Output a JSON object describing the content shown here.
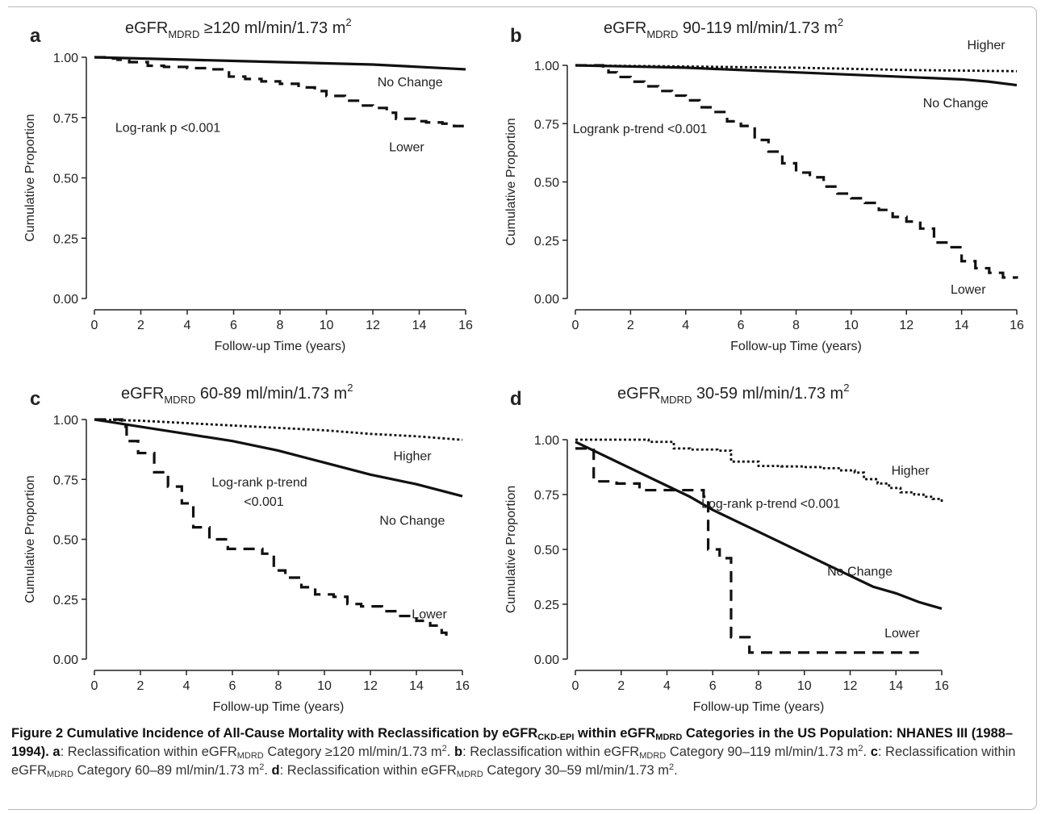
{
  "panels": [
    {
      "letter": "a",
      "title": {
        "prefix": "eGFR",
        "sub": "MDRD",
        "suffix": "  ≥120 ml/min/1.73  m",
        "sup": "2"
      },
      "chart_data": {
        "type": "line",
        "xlabel": "Follow-up Time (years)",
        "ylabel": "Cumulative  Proportion",
        "xlim": [
          0,
          16
        ],
        "ylim": [
          0,
          1
        ],
        "xticks": [
          "0",
          "2",
          "4",
          "6",
          "8",
          "10",
          "12",
          "14",
          "16"
        ],
        "yticks": [
          "0.00",
          "0.25",
          "0.50",
          "0.75",
          "1.00"
        ],
        "series": [
          {
            "name": "No Change",
            "style": "solid",
            "x": [
              0,
              2,
              4,
              6,
              8,
              10,
              12,
              14,
              15,
              16
            ],
            "y": [
              1.0,
              0.995,
              0.99,
              0.985,
              0.98,
              0.975,
              0.97,
              0.96,
              0.955,
              0.95
            ]
          },
          {
            "name": "Lower",
            "style": "dashed",
            "step": true,
            "x": [
              0,
              0.5,
              1,
              1.5,
              2.3,
              3,
              4,
              5,
              5.8,
              6.5,
              7.2,
              8,
              8.8,
              9.5,
              10,
              10.8,
              11.5,
              12,
              12.6,
              13,
              13.8,
              14.3,
              15,
              15.5,
              16
            ],
            "y": [
              1.0,
              0.995,
              0.99,
              0.98,
              0.965,
              0.96,
              0.955,
              0.95,
              0.92,
              0.91,
              0.9,
              0.89,
              0.875,
              0.86,
              0.84,
              0.82,
              0.8,
              0.79,
              0.77,
              0.745,
              0.735,
              0.73,
              0.725,
              0.715,
              0.7
            ]
          }
        ],
        "annotations": [
          {
            "text": "No Change",
            "x": 12.2,
            "y": 0.88
          },
          {
            "text": "Lower",
            "x": 12.7,
            "y": 0.61
          },
          {
            "text": "Log-rank p <0.001",
            "x": 0.9,
            "y": 0.69
          }
        ]
      }
    },
    {
      "letter": "b",
      "title": {
        "prefix": "eGFR",
        "sub": "MDRD",
        "suffix": " 90-119 ml/min/1.73  m",
        "sup": "2"
      },
      "chart_data": {
        "type": "line",
        "xlabel": "Follow-up Time (years)",
        "ylabel": "Cumulative  Proportion",
        "xlim": [
          0,
          16
        ],
        "ylim": [
          0,
          1
        ],
        "xticks": [
          "0",
          "2",
          "4",
          "6",
          "8",
          "10",
          "12",
          "14",
          "16"
        ],
        "yticks": [
          "0.00",
          "0.25",
          "0.50",
          "0.75",
          "1.00"
        ],
        "series": [
          {
            "name": "Higher",
            "style": "dotted",
            "x": [
              0,
              4,
              8,
              12,
              16
            ],
            "y": [
              1.0,
              0.995,
              0.99,
              0.98,
              0.975
            ]
          },
          {
            "name": "No Change",
            "style": "solid",
            "x": [
              0,
              2,
              4,
              6,
              8,
              10,
              12,
              14,
              15,
              16
            ],
            "y": [
              1.0,
              0.995,
              0.99,
              0.98,
              0.97,
              0.96,
              0.95,
              0.94,
              0.93,
              0.915
            ]
          },
          {
            "name": "Lower",
            "style": "dashed",
            "step": true,
            "x": [
              0,
              1,
              1.2,
              1.5,
              2,
              2.5,
              3,
              3.5,
              4,
              4.5,
              5,
              5.5,
              6,
              6.5,
              7,
              7.5,
              8,
              8.5,
              9,
              9.5,
              10,
              10.5,
              11,
              11.5,
              12,
              12.5,
              13,
              13.5,
              14,
              14.5,
              15,
              15.5,
              16
            ],
            "y": [
              1.0,
              0.99,
              0.97,
              0.95,
              0.93,
              0.91,
              0.89,
              0.87,
              0.85,
              0.82,
              0.8,
              0.76,
              0.74,
              0.68,
              0.63,
              0.58,
              0.54,
              0.52,
              0.48,
              0.45,
              0.43,
              0.41,
              0.38,
              0.35,
              0.33,
              0.3,
              0.24,
              0.22,
              0.16,
              0.13,
              0.11,
              0.09,
              0.085
            ]
          }
        ],
        "annotations": [
          {
            "text": "Higher",
            "x": 14.2,
            "y": 1.07
          },
          {
            "text": "No Change",
            "x": 12.6,
            "y": 0.82
          },
          {
            "text": "Logrank p-trend <0.001",
            "x": -0.1,
            "y": 0.71
          },
          {
            "text": "Lower",
            "x": 13.6,
            "y": 0.02
          }
        ]
      }
    },
    {
      "letter": "c",
      "title": {
        "prefix": "eGFR",
        "sub": "MDRD",
        "suffix": " 60-89 ml/min/1.73  m",
        "sup": "2"
      },
      "chart_data": {
        "type": "line",
        "xlabel": "Follow-up Time (years)",
        "ylabel": "Cumulative  Proportion",
        "xlim": [
          0,
          16
        ],
        "ylim": [
          0,
          1
        ],
        "xticks": [
          "0",
          "2",
          "4",
          "6",
          "8",
          "10",
          "12",
          "14",
          "16"
        ],
        "yticks": [
          "0.00",
          "0.25",
          "0.50",
          "0.75",
          "1.00"
        ],
        "series": [
          {
            "name": "Higher",
            "style": "dotted",
            "x": [
              0,
              2,
              4,
              6,
              8,
              10,
              12,
              14,
              16
            ],
            "y": [
              1.0,
              0.995,
              0.985,
              0.975,
              0.965,
              0.955,
              0.94,
              0.93,
              0.915
            ]
          },
          {
            "name": "No Change",
            "style": "solid",
            "x": [
              0,
              2,
              4,
              6,
              8,
              10,
              12,
              14,
              16
            ],
            "y": [
              1.0,
              0.97,
              0.94,
              0.91,
              0.87,
              0.82,
              0.77,
              0.73,
              0.68
            ]
          },
          {
            "name": "Lower",
            "style": "dashed",
            "step": true,
            "x": [
              0,
              1.2,
              1.4,
              1.9,
              2.6,
              3.2,
              3.8,
              4.3,
              5,
              5.8,
              7.3,
              7.8,
              8.3,
              9,
              9.6,
              10.4,
              11,
              11.6,
              12.5,
              13.2,
              14,
              14.6,
              15.1,
              15.3
            ],
            "y": [
              1.0,
              0.97,
              0.91,
              0.86,
              0.78,
              0.72,
              0.65,
              0.55,
              0.5,
              0.46,
              0.44,
              0.37,
              0.34,
              0.3,
              0.27,
              0.26,
              0.23,
              0.22,
              0.2,
              0.18,
              0.16,
              0.14,
              0.11,
              0.07
            ]
          }
        ],
        "annotations": [
          {
            "text": "Higher",
            "x": 13.0,
            "y": 0.83
          },
          {
            "text": "Log-rank p-trend",
            "x": 5.1,
            "y": 0.72
          },
          {
            "text": "<0.001",
            "x": 6.5,
            "y": 0.64
          },
          {
            "text": "No Change",
            "x": 12.4,
            "y": 0.56
          },
          {
            "text": "Lower",
            "x": 13.8,
            "y": 0.17
          }
        ]
      }
    },
    {
      "letter": "d",
      "title": {
        "prefix": "eGFR",
        "sub": "MDRD",
        "suffix": " 30-59 ml/min/1.73  m",
        "sup": "2"
      },
      "chart_data": {
        "type": "line",
        "xlabel": "Follow-up Time (years)",
        "ylabel": "Cumulative  Proportion",
        "xlim": [
          0,
          16
        ],
        "ylim": [
          0,
          1
        ],
        "xticks": [
          "0",
          "2",
          "4",
          "6",
          "8",
          "10",
          "12",
          "14",
          "16"
        ],
        "yticks": [
          "0.00",
          "0.25",
          "0.50",
          "0.75",
          "1.00"
        ],
        "series": [
          {
            "name": "Higher",
            "style": "dotted",
            "step": true,
            "x": [
              0,
              3.2,
              4.3,
              5,
              6.2,
              6.8,
              8,
              9,
              10,
              10.8,
              11.5,
              12.2,
              12.6,
              13.2,
              13.7,
              14.2,
              14.8,
              15.2,
              15.6,
              16
            ],
            "y": [
              1.0,
              0.99,
              0.96,
              0.955,
              0.95,
              0.9,
              0.88,
              0.878,
              0.875,
              0.87,
              0.86,
              0.85,
              0.82,
              0.8,
              0.78,
              0.76,
              0.75,
              0.74,
              0.73,
              0.71
            ]
          },
          {
            "name": "No Change",
            "style": "solid",
            "x": [
              0,
              1,
              2,
              3,
              4,
              5,
              6,
              7,
              8,
              9,
              10,
              11,
              12,
              13,
              14,
              15,
              16
            ],
            "y": [
              0.99,
              0.94,
              0.89,
              0.84,
              0.79,
              0.74,
              0.68,
              0.63,
              0.58,
              0.53,
              0.48,
              0.43,
              0.38,
              0.33,
              0.3,
              0.26,
              0.23
            ]
          },
          {
            "name": "Lower",
            "style": "dashed",
            "step": true,
            "x": [
              0,
              0.8,
              1.8,
              2.8,
              5.6,
              5.8,
              6.3,
              6.8,
              7.6,
              15
            ],
            "y": [
              0.96,
              0.81,
              0.8,
              0.77,
              0.74,
              0.5,
              0.46,
              0.1,
              0.03,
              0.03
            ]
          }
        ],
        "annotations": [
          {
            "text": "Higher",
            "x": 13.8,
            "y": 0.84
          },
          {
            "text": "Log-rank p-trend <0.001",
            "x": 5.5,
            "y": 0.69
          },
          {
            "text": "No Change",
            "x": 11.0,
            "y": 0.38
          },
          {
            "text": "Lower",
            "x": 13.5,
            "y": 0.1
          }
        ]
      }
    }
  ],
  "caption": {
    "heading_part1": "Figure 2 Cumulative Incidence of All-Cause Mortality with Reclassification by eGFR",
    "heading_sub1": "CKD-EPI",
    "heading_part2": " within eGFR",
    "heading_sub2": "MDRD",
    "heading_part3": " Categories in the US Population: NHANES III (1988–1994).",
    "items": [
      {
        "letter": "a",
        "text_before": ": Reclassification within eGFR",
        "sub": "MDRD",
        "text_after": " Category ≥120 ml/min/1.73 m",
        "sup": "2",
        "end": "."
      },
      {
        "letter": "b",
        "text_before": ": Reclassification within eGFR",
        "sub": "MDRD",
        "text_after": " Category 90–119 ml/min/1.73 m",
        "sup": "2",
        "end": "."
      },
      {
        "letter": "c",
        "text_before": ": Reclassification within eGFR",
        "sub": "MDRD",
        "text_after": " Category 60–89 ml/min/1.73 m",
        "sup": "2",
        "end": "."
      },
      {
        "letter": "d",
        "text_before": ": Reclassification within eGFR",
        "sub": "MDRD",
        "text_after": " Category 30–59 ml/min/1.73 m",
        "sup": "2",
        "end": "."
      }
    ]
  }
}
